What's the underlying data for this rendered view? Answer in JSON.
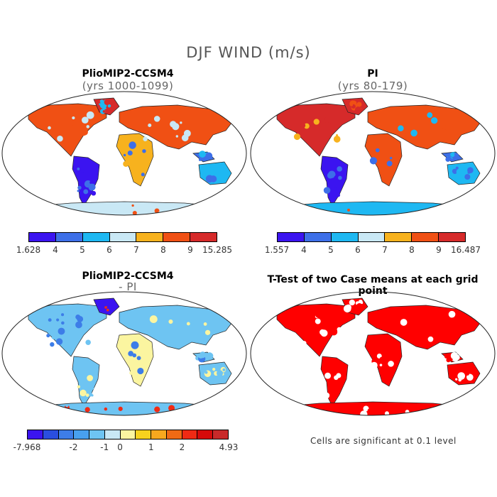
{
  "figure": {
    "title": "DJF WIND (m/s)"
  },
  "panels": [
    {
      "id": "plio",
      "title": "PlioMIP2-CCSM4",
      "subtitle": "(yrs 1000-1099)",
      "colorbar": {
        "colors": [
          "#3b14f0",
          "#3d6fe8",
          "#1eb8f2",
          "#c9e8f5",
          "#f7b21e",
          "#f05014",
          "#d62a2a"
        ],
        "tick_labels": [
          "1.628",
          "4",
          "5",
          "6",
          "7",
          "8",
          "9",
          "15.285"
        ]
      }
    },
    {
      "id": "pi",
      "title": "PI",
      "subtitle": "(yrs 80-179)",
      "colorbar": {
        "colors": [
          "#3b14f0",
          "#3d6fe8",
          "#1eb8f2",
          "#c9e8f5",
          "#f7b21e",
          "#f05014",
          "#d62a2a"
        ],
        "tick_labels": [
          "1.557",
          "4",
          "5",
          "6",
          "7",
          "8",
          "9",
          "16.487"
        ]
      }
    },
    {
      "id": "diff",
      "title": "PlioMIP2-CCSM4",
      "subtitle": "- PI",
      "colorbar": {
        "colors": [
          "#3b14f0",
          "#2a4ee0",
          "#3d7de8",
          "#48a0ee",
          "#6ec4f2",
          "#c9e8f5",
          "#fbf5a0",
          "#f7d21e",
          "#f7a81e",
          "#f06a14",
          "#f02a14",
          "#d60a0a",
          "#c82a2a"
        ],
        "tick_labels": [
          "-7.968",
          "-2",
          "-1",
          "0",
          "1",
          "2",
          "4.93"
        ]
      }
    },
    {
      "id": "ttest",
      "title": "T-Test of two Case means at each grid point",
      "note": "Cells are significant at 0.1 level",
      "fill_color": "#ff0000"
    }
  ]
}
